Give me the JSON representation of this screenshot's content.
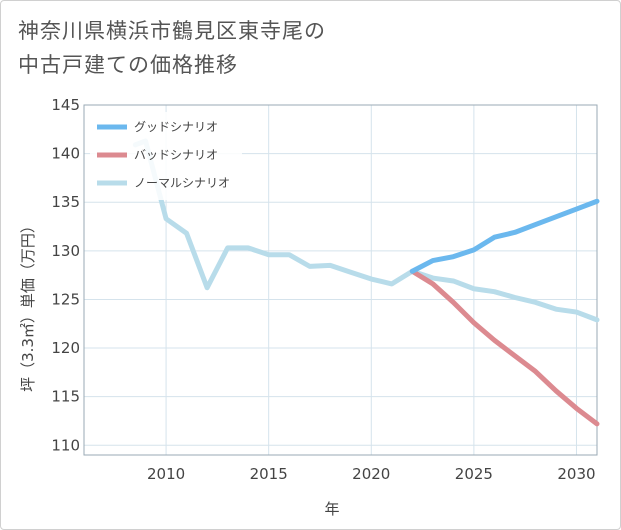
{
  "title": "神奈川県横浜市鶴見区東寺尾の\n中古戸建ての価格推移",
  "chart_data": {
    "type": "line",
    "xlabel": "年",
    "ylabel": "坪（3.3㎡）単価（万円）",
    "xlim": [
      2006,
      2031
    ],
    "ylim": [
      109,
      145
    ],
    "xticks": [
      2010,
      2015,
      2020,
      2025,
      2030
    ],
    "yticks": [
      110,
      115,
      120,
      125,
      130,
      135,
      140,
      145
    ],
    "legend_position": "top-left",
    "grid": true,
    "series": [
      {
        "name": "グッドシナリオ",
        "color": "#6bb8ee",
        "x": [
          2022,
          2023,
          2024,
          2025,
          2026,
          2027,
          2028,
          2029,
          2030,
          2031
        ],
        "y": [
          127.9,
          129.0,
          129.4,
          130.1,
          131.4,
          131.9,
          132.7,
          133.5,
          134.3,
          135.1
        ]
      },
      {
        "name": "バッドシナリオ",
        "color": "#dc8a90",
        "x": [
          2022,
          2023,
          2024,
          2025,
          2026,
          2027,
          2028,
          2029,
          2030,
          2031
        ],
        "y": [
          127.9,
          126.6,
          124.7,
          122.6,
          120.8,
          119.2,
          117.6,
          115.6,
          113.8,
          112.2
        ]
      },
      {
        "name": "ノーマルシナリオ",
        "color": "#b8dcea",
        "x": [
          2008.5,
          2009,
          2010,
          2011,
          2012,
          2013,
          2014,
          2015,
          2016,
          2017,
          2018,
          2019,
          2020,
          2021,
          2022,
          2023,
          2024,
          2025,
          2026,
          2027,
          2028,
          2029,
          2030,
          2031
        ],
        "y": [
          140.9,
          141.3,
          133.3,
          131.8,
          126.2,
          130.3,
          130.3,
          129.6,
          129.6,
          128.4,
          128.5,
          127.8,
          127.1,
          126.6,
          127.9,
          127.2,
          126.9,
          126.1,
          125.8,
          125.2,
          124.7,
          124.0,
          123.7,
          122.9
        ]
      }
    ]
  }
}
